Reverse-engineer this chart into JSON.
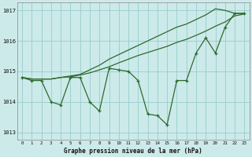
{
  "bg_color": "#cceaea",
  "grid_color": "#99cccc",
  "line_color": "#2d6a2d",
  "title": "Graphe pression niveau de la mer (hPa)",
  "ylim": [
    1012.75,
    1017.25
  ],
  "yticks": [
    1013,
    1014,
    1015,
    1016,
    1017
  ],
  "xlim": [
    -0.5,
    23.5
  ],
  "xticks": [
    0,
    1,
    2,
    3,
    4,
    5,
    6,
    7,
    8,
    9,
    10,
    11,
    12,
    13,
    14,
    15,
    16,
    17,
    18,
    19,
    20,
    21,
    22,
    23
  ],
  "line_zigzag": [
    1014.8,
    1014.7,
    1014.7,
    1014.0,
    1013.9,
    1014.8,
    1014.8,
    1014.0,
    1013.7,
    1015.1,
    1015.05,
    1015.0,
    1014.7,
    1013.6,
    1013.55,
    1013.25,
    1014.7,
    1014.7,
    1015.6,
    1016.1,
    1015.6,
    1016.45,
    1016.9,
    1016.9
  ],
  "line_upper": [
    1014.8,
    1014.75,
    1014.75,
    1014.75,
    1014.8,
    1014.85,
    1014.9,
    1015.05,
    1015.2,
    1015.4,
    1015.55,
    1015.7,
    1015.85,
    1016.0,
    1016.15,
    1016.3,
    1016.45,
    1016.55,
    1016.7,
    1016.85,
    1017.05,
    1017.0,
    1016.9,
    1016.9
  ],
  "line_lower": [
    1014.8,
    1014.75,
    1014.75,
    1014.75,
    1014.8,
    1014.82,
    1014.88,
    1014.95,
    1015.05,
    1015.15,
    1015.28,
    1015.4,
    1015.52,
    1015.62,
    1015.72,
    1015.82,
    1015.95,
    1016.05,
    1016.18,
    1016.32,
    1016.48,
    1016.62,
    1016.82,
    1016.88
  ]
}
